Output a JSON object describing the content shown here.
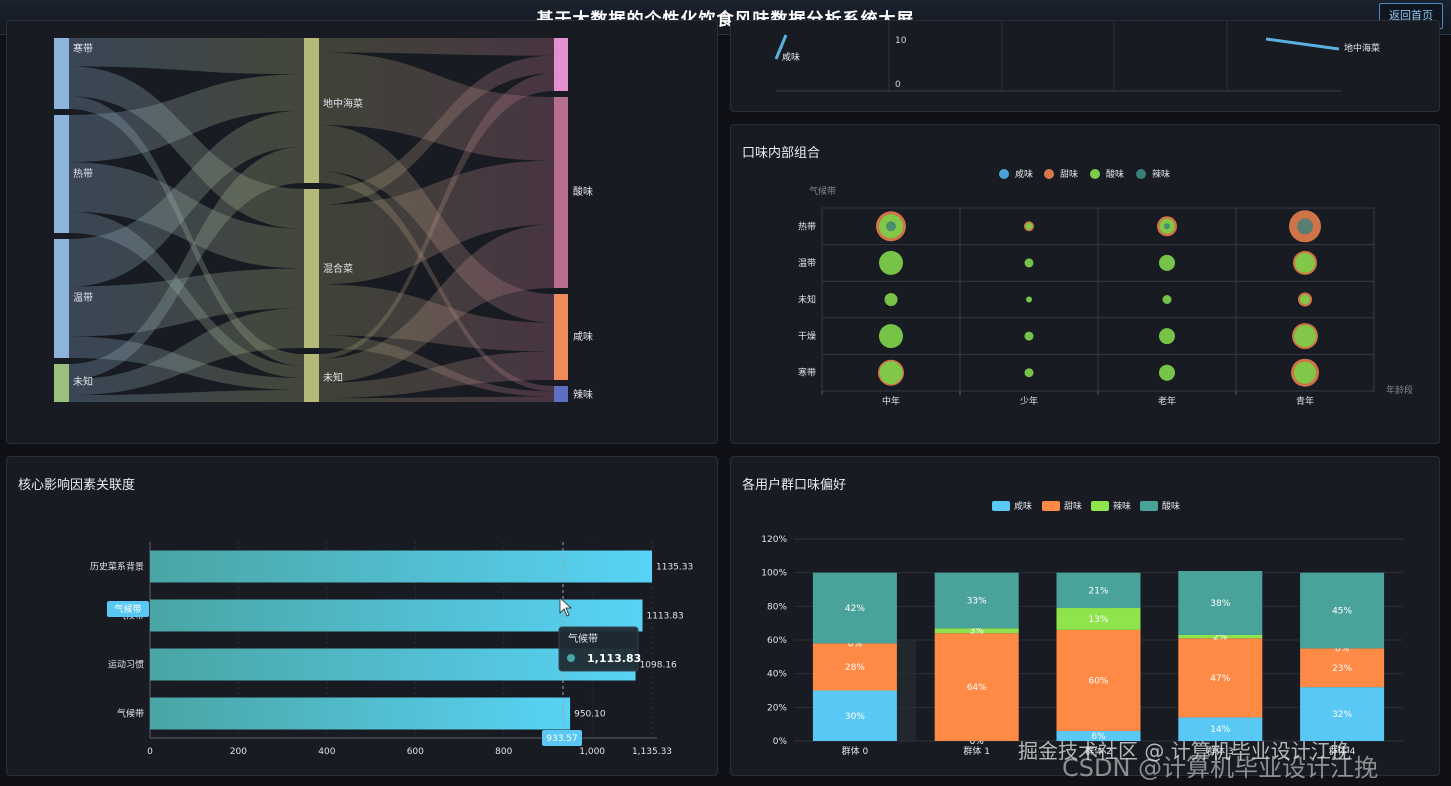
{
  "header": {
    "title": "基于大数据的个性化饮食风味数据分析系统大屏",
    "back_label": "返回首页"
  },
  "sankey": {
    "left_nodes": [
      "寒带",
      "热带",
      "温带",
      "未知"
    ],
    "mid_nodes": [
      "地中海菜",
      "混合菜",
      "未知"
    ],
    "right_nodes": [
      "酸味",
      "咸味",
      "辣味"
    ],
    "colors": {
      "left": "#8fb4dc",
      "mid": "#b4b878",
      "right_sour": "#b86f8e",
      "right_salty": "#ef8a5a",
      "right_spicy": "#5d6fc2",
      "right_top": "#e48fd0"
    }
  },
  "top_right_partial": {
    "ticks": [
      "10",
      "0"
    ],
    "labels": [
      "咸味",
      "地中海菜"
    ]
  },
  "bubble_panel": {
    "title": "口味内部组合"
  },
  "bar_panel": {
    "title": "核心影响因素关联度"
  },
  "stack_panel": {
    "title": "各用户群口味偏好"
  },
  "tooltip": {
    "title": "气候带",
    "value": "1,113.83"
  },
  "axis_pointer": {
    "y_label": "气候带",
    "x_label": "933.57"
  },
  "watermark": {
    "line1": "掘金技术社区 @ 计算机毕业设计江挽",
    "line2": "CSDN @计算机毕业设计江挽"
  },
  "chart_data": [
    {
      "type": "scatter",
      "title": "口味内部组合",
      "xlabel": "年龄段",
      "ylabel": "气候带",
      "x_categories": [
        "中年",
        "少年",
        "老年",
        "青年"
      ],
      "y_categories": [
        "寒带",
        "干燥",
        "未知",
        "温带",
        "热带"
      ],
      "legend": [
        "咸味",
        "甜味",
        "酸味",
        "辣味"
      ],
      "legend_position": "top-center",
      "colors": {
        "咸味": "#4aa3d8",
        "甜味": "#d9794a",
        "酸味": "#7ccc4a",
        "辣味": "#3b7f7a"
      },
      "points": [
        {
          "x": "中年",
          "y": "热带",
          "sizes": {
            "甜味": 30,
            "酸味": 24,
            "辣味": 10
          }
        },
        {
          "x": "少年",
          "y": "热带",
          "sizes": {
            "甜味": 10,
            "酸味": 7
          }
        },
        {
          "x": "老年",
          "y": "热带",
          "sizes": {
            "甜味": 20,
            "酸味": 15,
            "辣味": 6
          }
        },
        {
          "x": "青年",
          "y": "热带",
          "sizes": {
            "甜味": 32,
            "辣味": 16
          }
        },
        {
          "x": "中年",
          "y": "温带",
          "sizes": {
            "酸味": 24
          }
        },
        {
          "x": "少年",
          "y": "温带",
          "sizes": {
            "酸味": 9
          }
        },
        {
          "x": "老年",
          "y": "温带",
          "sizes": {
            "酸味": 16
          }
        },
        {
          "x": "青年",
          "y": "温带",
          "sizes": {
            "甜味": 24,
            "酸味": 20
          }
        },
        {
          "x": "中年",
          "y": "未知",
          "sizes": {
            "酸味": 13
          }
        },
        {
          "x": "少年",
          "y": "未知",
          "sizes": {
            "酸味": 6
          }
        },
        {
          "x": "老年",
          "y": "未知",
          "sizes": {
            "酸味": 9
          }
        },
        {
          "x": "青年",
          "y": "未知",
          "sizes": {
            "甜味": 14,
            "酸味": 10
          }
        },
        {
          "x": "中年",
          "y": "干燥",
          "sizes": {
            "酸味": 24
          }
        },
        {
          "x": "少年",
          "y": "干燥",
          "sizes": {
            "酸味": 9
          }
        },
        {
          "x": "老年",
          "y": "干燥",
          "sizes": {
            "酸味": 16
          }
        },
        {
          "x": "青年",
          "y": "干燥",
          "sizes": {
            "甜味": 26,
            "酸味": 22
          }
        },
        {
          "x": "中年",
          "y": "寒带",
          "sizes": {
            "甜味": 26,
            "酸味": 23
          }
        },
        {
          "x": "少年",
          "y": "寒带",
          "sizes": {
            "酸味": 9
          }
        },
        {
          "x": "老年",
          "y": "寒带",
          "sizes": {
            "酸味": 16
          }
        },
        {
          "x": "青年",
          "y": "寒带",
          "sizes": {
            "甜味": 28,
            "酸味": 22
          }
        }
      ]
    },
    {
      "type": "bar",
      "orientation": "horizontal",
      "title": "核心影响因素关联度",
      "categories": [
        "历史菜系背景",
        "气候带",
        "运动习惯",
        "气候带"
      ],
      "values": [
        1135.33,
        1113.83,
        1098.16,
        950.1
      ],
      "value_labels": [
        "1135.33",
        "1113.83",
        "1098.16",
        "950.10"
      ],
      "x_ticks": [
        "0",
        "200",
        "400",
        "600",
        "800",
        "1,000",
        "1,135.33"
      ],
      "xlim": [
        0,
        1135.33
      ],
      "color": "#4dcde2"
    },
    {
      "type": "bar",
      "stacked": true,
      "title": "各用户群口味偏好",
      "categories": [
        "群体 0",
        "群体 1",
        "群体 2",
        "群体 3",
        "群体 4"
      ],
      "ylim": [
        0,
        120
      ],
      "y_ticks": [
        "0%",
        "20%",
        "40%",
        "60%",
        "80%",
        "100%",
        "120%"
      ],
      "legend_position": "top-center",
      "series": [
        {
          "name": "咸味",
          "color": "#5ac8f5",
          "values": [
            30,
            0,
            6,
            14,
            32
          ],
          "labels": [
            "30%",
            "0%",
            "6%",
            "14%",
            "32%"
          ]
        },
        {
          "name": "甜味",
          "color": "#ff8a45",
          "values": [
            28,
            64,
            60,
            47,
            23
          ],
          "labels": [
            "28%",
            "64%",
            "60%",
            "47%",
            "23%"
          ]
        },
        {
          "name": "辣味",
          "color": "#8fe34c",
          "values": [
            0,
            3,
            13,
            2,
            0
          ],
          "labels": [
            "0%",
            "3%",
            "13%",
            "2%",
            "0%"
          ]
        },
        {
          "name": "酸味",
          "color": "#4aa39a",
          "values": [
            42,
            33,
            21,
            38,
            45
          ],
          "labels": [
            "42%",
            "33%",
            "21%",
            "38%",
            "45%"
          ]
        }
      ]
    }
  ]
}
